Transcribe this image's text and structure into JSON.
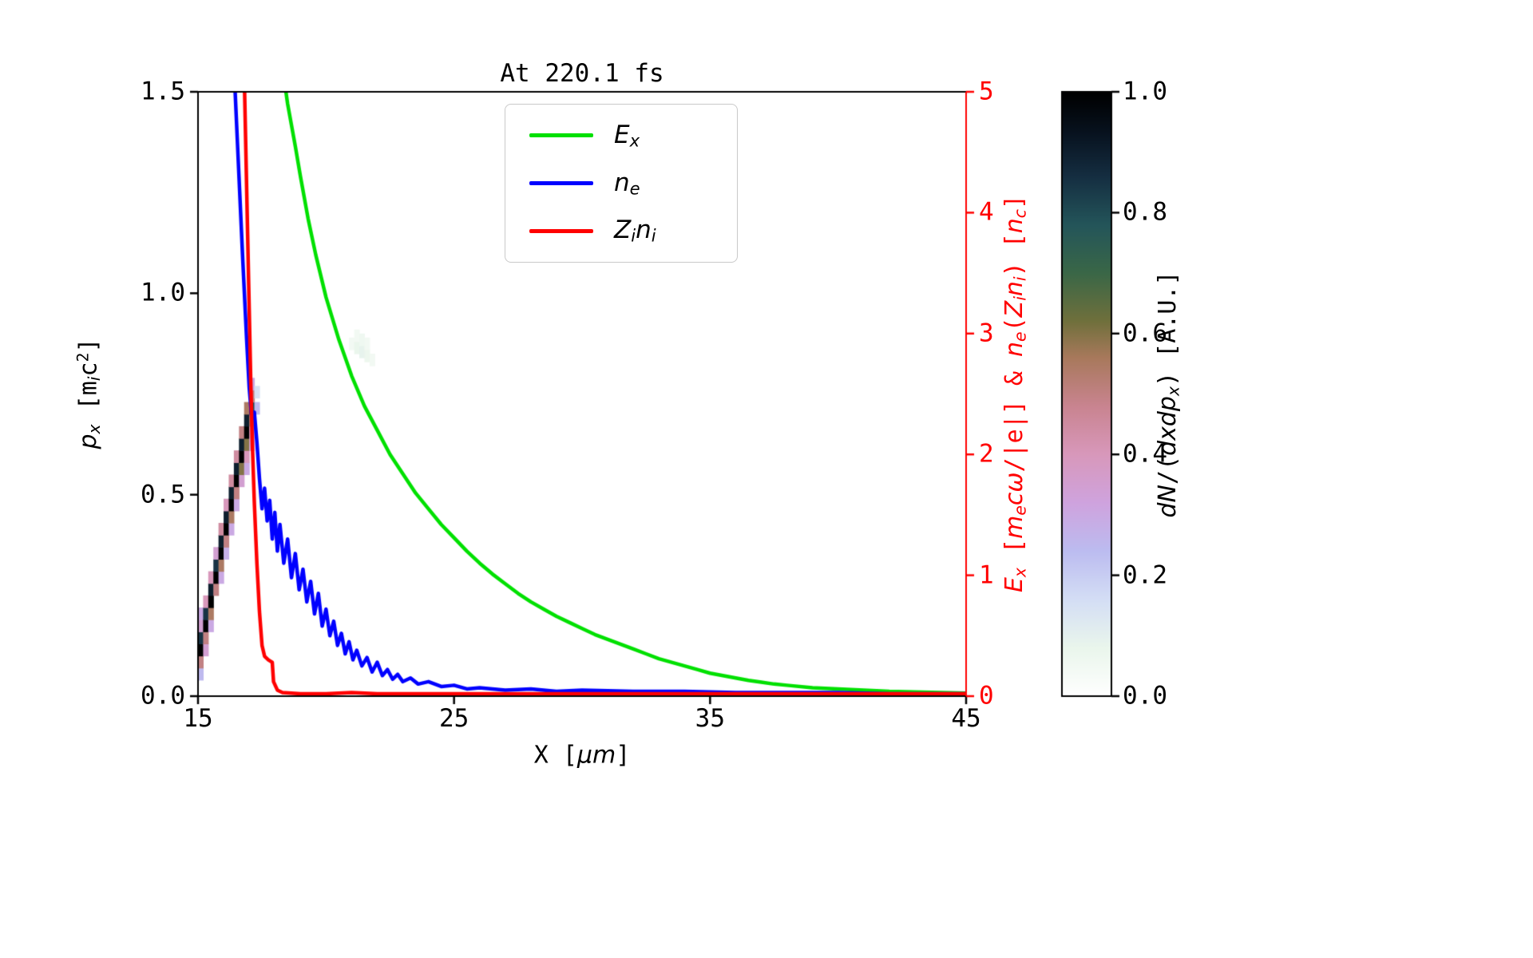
{
  "title": "At 220.1 fs",
  "chart_data": {
    "type": "line+heatmap",
    "title": "At 220.1 fs",
    "xlabel": "X [μm]",
    "ylabel_left": "p_x [m_i c^2]",
    "ylabel_right": "E_x [m_e cω/|e|] & n_e(Z_i n_i) [n_c]",
    "colorbar_label": "dN/(dxdp_x) [A.U.]",
    "xlim": [
      15,
      45
    ],
    "ylim_left": [
      0,
      1.5
    ],
    "ylim_right": [
      0,
      5
    ],
    "x_ticks": [
      "15",
      "25",
      "35",
      "45"
    ],
    "y_left_ticks": [
      "0.0",
      "0.5",
      "1.0",
      "1.5"
    ],
    "y_right_ticks": [
      "0",
      "1",
      "2",
      "3",
      "4",
      "5"
    ],
    "colorbar_ticks": [
      "0.0",
      "0.2",
      "0.4",
      "0.6",
      "0.8",
      "1.0"
    ],
    "right_axis_color": "#ff0000",
    "legend_position": "upper center",
    "grid": false,
    "series": [
      {
        "name": "E_x",
        "axis": "right",
        "color": "#00e000",
        "points": [
          [
            17.9,
            6.0
          ],
          [
            18.3,
            5.2
          ],
          [
            18.5,
            4.9
          ],
          [
            18.8,
            4.55
          ],
          [
            19.0,
            4.3
          ],
          [
            19.3,
            3.95
          ],
          [
            19.6,
            3.65
          ],
          [
            20.0,
            3.3
          ],
          [
            20.5,
            2.95
          ],
          [
            21.0,
            2.65
          ],
          [
            21.5,
            2.4
          ],
          [
            22.0,
            2.2
          ],
          [
            22.5,
            2.0
          ],
          [
            23.0,
            1.84
          ],
          [
            23.5,
            1.68
          ],
          [
            24.0,
            1.55
          ],
          [
            24.5,
            1.42
          ],
          [
            25.0,
            1.31
          ],
          [
            25.5,
            1.2
          ],
          [
            26.0,
            1.1
          ],
          [
            26.5,
            1.01
          ],
          [
            27.0,
            0.93
          ],
          [
            27.5,
            0.85
          ],
          [
            28.0,
            0.78
          ],
          [
            28.5,
            0.72
          ],
          [
            29.0,
            0.66
          ],
          [
            29.5,
            0.61
          ],
          [
            30.0,
            0.56
          ],
          [
            30.5,
            0.51
          ],
          [
            31.0,
            0.47
          ],
          [
            31.5,
            0.43
          ],
          [
            32.0,
            0.39
          ],
          [
            32.5,
            0.35
          ],
          [
            33.0,
            0.31
          ],
          [
            33.5,
            0.28
          ],
          [
            34.0,
            0.25
          ],
          [
            34.5,
            0.22
          ],
          [
            35.0,
            0.19
          ],
          [
            35.5,
            0.17
          ],
          [
            36.0,
            0.15
          ],
          [
            36.5,
            0.13
          ],
          [
            37.0,
            0.115
          ],
          [
            37.5,
            0.1
          ],
          [
            38.0,
            0.09
          ],
          [
            39.0,
            0.07
          ],
          [
            40.0,
            0.06
          ],
          [
            41.0,
            0.05
          ],
          [
            42.0,
            0.04
          ],
          [
            43.0,
            0.035
          ],
          [
            44.0,
            0.03
          ],
          [
            45.0,
            0.025
          ]
        ]
      },
      {
        "name": "n_e",
        "axis": "right",
        "color": "#0000ff",
        "points": [
          [
            16.2,
            6.5
          ],
          [
            16.35,
            5.6
          ],
          [
            16.45,
            5.0
          ],
          [
            16.6,
            4.3
          ],
          [
            16.75,
            3.6
          ],
          [
            16.9,
            2.95
          ],
          [
            17.0,
            2.55
          ],
          [
            17.1,
            2.3
          ],
          [
            17.2,
            2.35
          ],
          [
            17.3,
            2.1
          ],
          [
            17.4,
            1.8
          ],
          [
            17.5,
            1.55
          ],
          [
            17.6,
            1.72
          ],
          [
            17.7,
            1.45
          ],
          [
            17.8,
            1.62
          ],
          [
            17.9,
            1.3
          ],
          [
            18.0,
            1.52
          ],
          [
            18.1,
            1.2
          ],
          [
            18.2,
            1.42
          ],
          [
            18.35,
            1.1
          ],
          [
            18.5,
            1.3
          ],
          [
            18.65,
            0.98
          ],
          [
            18.8,
            1.18
          ],
          [
            18.95,
            0.88
          ],
          [
            19.1,
            1.05
          ],
          [
            19.25,
            0.78
          ],
          [
            19.4,
            0.95
          ],
          [
            19.55,
            0.68
          ],
          [
            19.7,
            0.85
          ],
          [
            19.85,
            0.58
          ],
          [
            20.0,
            0.72
          ],
          [
            20.15,
            0.5
          ],
          [
            20.3,
            0.62
          ],
          [
            20.45,
            0.42
          ],
          [
            20.6,
            0.52
          ],
          [
            20.75,
            0.35
          ],
          [
            20.9,
            0.45
          ],
          [
            21.05,
            0.3
          ],
          [
            21.2,
            0.38
          ],
          [
            21.4,
            0.25
          ],
          [
            21.6,
            0.32
          ],
          [
            21.8,
            0.2
          ],
          [
            22.0,
            0.28
          ],
          [
            22.2,
            0.17
          ],
          [
            22.4,
            0.22
          ],
          [
            22.6,
            0.14
          ],
          [
            22.8,
            0.18
          ],
          [
            23.0,
            0.12
          ],
          [
            23.3,
            0.15
          ],
          [
            23.6,
            0.1
          ],
          [
            24.0,
            0.12
          ],
          [
            24.5,
            0.08
          ],
          [
            25.0,
            0.09
          ],
          [
            25.5,
            0.06
          ],
          [
            26.0,
            0.07
          ],
          [
            27.0,
            0.05
          ],
          [
            28.0,
            0.06
          ],
          [
            29.0,
            0.04
          ],
          [
            30.0,
            0.05
          ],
          [
            32.0,
            0.04
          ],
          [
            34.0,
            0.04
          ],
          [
            36.0,
            0.03
          ],
          [
            38.0,
            0.03
          ],
          [
            40.0,
            0.03
          ],
          [
            42.0,
            0.02
          ],
          [
            45.0,
            0.02
          ]
        ]
      },
      {
        "name": "Z_i n_i",
        "axis": "right",
        "color": "#ff0000",
        "points": [
          [
            16.7,
            6.5
          ],
          [
            16.82,
            5.0
          ],
          [
            16.88,
            4.4
          ],
          [
            16.94,
            3.8
          ],
          [
            17.0,
            3.2
          ],
          [
            17.06,
            2.6
          ],
          [
            17.12,
            2.1
          ],
          [
            17.2,
            1.6
          ],
          [
            17.3,
            1.1
          ],
          [
            17.4,
            0.7
          ],
          [
            17.5,
            0.42
          ],
          [
            17.6,
            0.33
          ],
          [
            17.75,
            0.3
          ],
          [
            17.9,
            0.28
          ],
          [
            17.95,
            0.12
          ],
          [
            18.1,
            0.05
          ],
          [
            18.3,
            0.03
          ],
          [
            19.0,
            0.02
          ],
          [
            20.0,
            0.02
          ],
          [
            21.0,
            0.03
          ],
          [
            22.0,
            0.02
          ],
          [
            24.0,
            0.02
          ],
          [
            26.0,
            0.02
          ],
          [
            28.0,
            0.02
          ],
          [
            30.0,
            0.02
          ],
          [
            33.0,
            0.02
          ],
          [
            36.0,
            0.02
          ],
          [
            40.0,
            0.02
          ],
          [
            45.0,
            0.02
          ]
        ]
      }
    ],
    "heatmap": {
      "name": "dN/(dxdp_x)",
      "axis": "left",
      "vmin": 0,
      "vmax": 1,
      "cell_w": 0.2,
      "cell_h": 0.03,
      "colormap_stops": [
        [
          0.0,
          "#ffffff"
        ],
        [
          0.08,
          "#eaf6ec"
        ],
        [
          0.16,
          "#d4def5"
        ],
        [
          0.24,
          "#bcbcf0"
        ],
        [
          0.32,
          "#cfa3de"
        ],
        [
          0.4,
          "#d898bb"
        ],
        [
          0.48,
          "#c98490"
        ],
        [
          0.56,
          "#a8795c"
        ],
        [
          0.62,
          "#70703c"
        ],
        [
          0.7,
          "#3a6747"
        ],
        [
          0.78,
          "#24555a"
        ],
        [
          0.86,
          "#152e41"
        ],
        [
          0.93,
          "#081320"
        ],
        [
          1.0,
          "#000000"
        ]
      ],
      "cells": [
        [
          15.0,
          0.04,
          0.25
        ],
        [
          15.0,
          0.07,
          0.5
        ],
        [
          15.0,
          0.1,
          1.0
        ],
        [
          15.0,
          0.13,
          0.85
        ],
        [
          15.0,
          0.16,
          0.35
        ],
        [
          15.0,
          0.19,
          0.3
        ],
        [
          15.2,
          0.1,
          0.35
        ],
        [
          15.2,
          0.13,
          0.5
        ],
        [
          15.2,
          0.16,
          1.0
        ],
        [
          15.2,
          0.19,
          0.85
        ],
        [
          15.2,
          0.22,
          0.4
        ],
        [
          15.4,
          0.16,
          0.3
        ],
        [
          15.4,
          0.19,
          0.55
        ],
        [
          15.4,
          0.22,
          1.0
        ],
        [
          15.4,
          0.25,
          0.9
        ],
        [
          15.4,
          0.28,
          0.4
        ],
        [
          15.6,
          0.25,
          0.5
        ],
        [
          15.6,
          0.28,
          1.0
        ],
        [
          15.6,
          0.31,
          0.85
        ],
        [
          15.6,
          0.34,
          0.35
        ],
        [
          15.8,
          0.28,
          0.3
        ],
        [
          15.8,
          0.31,
          0.55
        ],
        [
          15.8,
          0.34,
          1.0
        ],
        [
          15.8,
          0.37,
          0.9
        ],
        [
          15.8,
          0.4,
          0.45
        ],
        [
          16.0,
          0.34,
          0.28
        ],
        [
          16.0,
          0.37,
          0.5
        ],
        [
          16.0,
          0.4,
          1.0
        ],
        [
          16.0,
          0.43,
          0.9
        ],
        [
          16.0,
          0.46,
          0.4
        ],
        [
          16.2,
          0.4,
          0.3
        ],
        [
          16.2,
          0.43,
          0.55
        ],
        [
          16.2,
          0.46,
          1.0
        ],
        [
          16.2,
          0.49,
          0.9
        ],
        [
          16.2,
          0.52,
          0.45
        ],
        [
          16.4,
          0.46,
          0.3
        ],
        [
          16.4,
          0.49,
          0.5
        ],
        [
          16.4,
          0.52,
          1.0
        ],
        [
          16.4,
          0.55,
          0.9
        ],
        [
          16.4,
          0.58,
          0.45
        ],
        [
          16.6,
          0.52,
          0.35
        ],
        [
          16.6,
          0.55,
          0.6
        ],
        [
          16.6,
          0.58,
          1.0
        ],
        [
          16.6,
          0.61,
          0.9
        ],
        [
          16.6,
          0.64,
          0.5
        ],
        [
          16.8,
          0.55,
          0.3
        ],
        [
          16.8,
          0.58,
          0.4
        ],
        [
          16.8,
          0.61,
          0.6
        ],
        [
          16.8,
          0.64,
          1.0
        ],
        [
          16.8,
          0.67,
          0.9
        ],
        [
          16.8,
          0.7,
          0.55
        ],
        [
          17.0,
          0.61,
          0.35
        ],
        [
          17.0,
          0.64,
          0.4
        ],
        [
          17.0,
          0.67,
          0.55
        ],
        [
          17.0,
          0.7,
          0.8
        ],
        [
          17.0,
          0.73,
          0.5
        ],
        [
          17.0,
          0.76,
          0.3
        ],
        [
          17.2,
          0.7,
          0.25
        ],
        [
          17.2,
          0.74,
          0.15
        ],
        [
          20.9,
          0.86,
          0.05
        ],
        [
          21.1,
          0.85,
          0.08
        ],
        [
          21.3,
          0.84,
          0.09
        ],
        [
          21.5,
          0.83,
          0.07
        ],
        [
          21.7,
          0.82,
          0.05
        ],
        [
          21.1,
          0.88,
          0.05
        ],
        [
          21.3,
          0.87,
          0.06
        ],
        [
          21.5,
          0.86,
          0.05
        ]
      ]
    }
  },
  "labels": {
    "x_axis": [
      {
        "t": "X [",
        "m": 1
      },
      {
        "t": "μm",
        "i": 1
      },
      {
        "t": "]",
        "m": 1
      }
    ],
    "y_left": [
      {
        "t": "p",
        "i": 1
      },
      {
        "t": "x",
        "i": 1,
        "sub": 1
      },
      {
        "t": " [",
        "m": 1
      },
      {
        "t": "m",
        "m": 1
      },
      {
        "t": "i",
        "i": 1,
        "sub": 1
      },
      {
        "t": "c",
        "m": 1
      },
      {
        "t": "2",
        "m": 1,
        "sup": 1
      },
      {
        "t": "]",
        "m": 1
      }
    ],
    "y_right": [
      {
        "t": "E",
        "i": 1
      },
      {
        "t": "x",
        "i": 1,
        "sub": 1
      },
      {
        "t": " [",
        "m": 1
      },
      {
        "t": "m",
        "i": 1
      },
      {
        "t": "e",
        "i": 1,
        "sub": 1
      },
      {
        "t": "c",
        "i": 1
      },
      {
        "t": "ω",
        "i": 1
      },
      {
        "t": "/|e|]",
        "m": 1
      },
      {
        "t": " & ",
        "m": 1
      },
      {
        "t": "n",
        "i": 1
      },
      {
        "t": "e",
        "i": 1,
        "sub": 1
      },
      {
        "t": "(",
        "m": 1
      },
      {
        "t": "Z",
        "i": 1
      },
      {
        "t": "i",
        "i": 1,
        "sub": 1
      },
      {
        "t": "n",
        "i": 1
      },
      {
        "t": "i",
        "i": 1,
        "sub": 1
      },
      {
        "t": ")",
        "m": 1
      },
      {
        "t": " [",
        "m": 1
      },
      {
        "t": "n",
        "i": 1
      },
      {
        "t": "c",
        "i": 1,
        "sub": 1
      },
      {
        "t": "]",
        "m": 1
      }
    ],
    "colorbar": [
      {
        "t": "d",
        "i": 1
      },
      {
        "t": "N",
        "i": 1
      },
      {
        "t": "/(",
        "m": 1
      },
      {
        "t": "d",
        "i": 1
      },
      {
        "t": "x",
        "i": 1
      },
      {
        "t": "d",
        "i": 1
      },
      {
        "t": "p",
        "i": 1
      },
      {
        "t": "x",
        "i": 1,
        "sub": 1
      },
      {
        "t": ")",
        "m": 1
      },
      {
        "t": " [A.U.]",
        "m": 1
      }
    ]
  },
  "legend": {
    "items": [
      {
        "key": "ex",
        "color": "#00e000",
        "segs": [
          {
            "t": "E",
            "i": 1
          },
          {
            "t": "x",
            "i": 1,
            "sub": 1
          }
        ]
      },
      {
        "key": "ne",
        "color": "#0000ff",
        "segs": [
          {
            "t": "n",
            "i": 1
          },
          {
            "t": "e",
            "i": 1,
            "sub": 1
          }
        ]
      },
      {
        "key": "zini",
        "color": "#ff0000",
        "segs": [
          {
            "t": "Z",
            "i": 1
          },
          {
            "t": "i",
            "i": 1,
            "sub": 1
          },
          {
            "t": "n",
            "i": 1
          },
          {
            "t": "i",
            "i": 1,
            "sub": 1
          }
        ]
      }
    ]
  }
}
